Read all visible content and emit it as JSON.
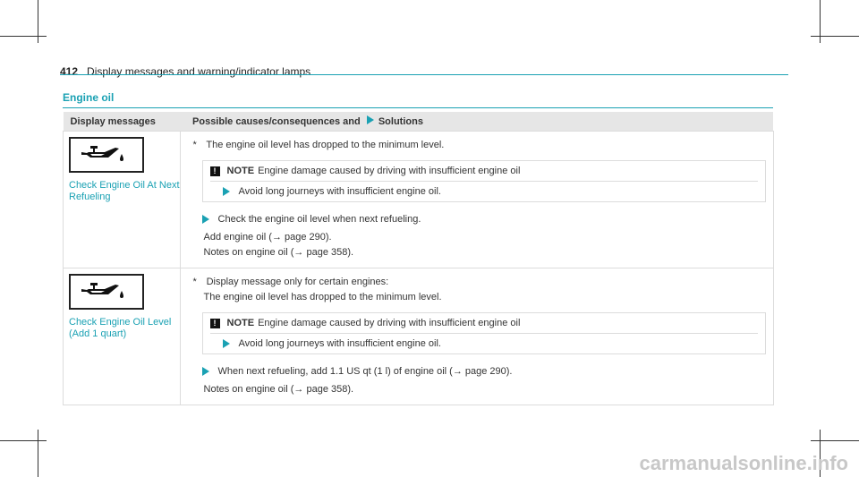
{
  "header": {
    "page_number": "412",
    "title": "Display messages and warning/indicator lamps"
  },
  "section": {
    "title": "Engine oil"
  },
  "table": {
    "col_messages": "Display messages",
    "col_solutions_prefix": "Possible causes/consequences and",
    "col_solutions_suffix": "Solutions",
    "rows": [
      {
        "message_line1": "Check Engine Oil At Next",
        "message_line2": "Refueling",
        "cause_marker": "*",
        "cause": "The engine oil level has dropped to the minimum level.",
        "cause2": "",
        "note_icon": "!",
        "note_label": "NOTE",
        "note_text": "Engine damage caused by driving with insufficient engine oil",
        "note_action": "Avoid long journeys with insufficient engine oil.",
        "step": "Check the engine oil level when next refueling.",
        "after1": "Add engine oil (→ page 290).",
        "after2": "Notes on engine oil (→ page 358)."
      },
      {
        "message_line1": "Check Engine Oil Level",
        "message_line2": "(Add 1 quart)",
        "cause_marker": "*",
        "cause": "Display message only for certain engines:",
        "cause2": "The engine oil level has dropped to the minimum level.",
        "note_icon": "!",
        "note_label": "NOTE",
        "note_text": "Engine damage caused by driving with insufficient engine oil",
        "note_action": "Avoid long journeys with insufficient engine oil.",
        "step": "When next refueling, add 1.1 US qt (1 l) of engine oil (→ page 290).",
        "after1": "Notes on engine oil (→ page 358)."
      }
    ]
  },
  "watermark": "carmanualsonline.info",
  "colors": {
    "accent": "#1aa1b3",
    "header_bg": "#e6e6e6"
  }
}
